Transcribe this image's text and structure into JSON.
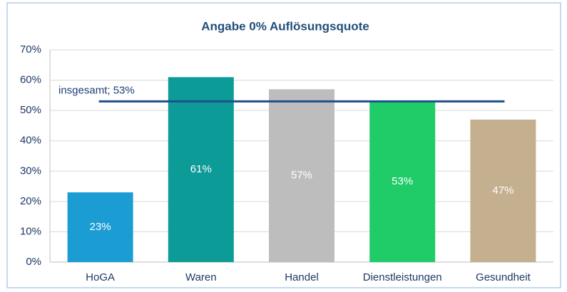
{
  "chart_data": {
    "type": "bar",
    "title": "Angabe 0% Auflösungsquote",
    "categories": [
      "HoGA",
      "Waren",
      "Handel",
      "Dienstleistungen",
      "Gesundheit"
    ],
    "values": [
      23,
      61,
      57,
      53,
      47
    ],
    "value_labels": [
      "23%",
      "61%",
      "57%",
      "53%",
      "47%"
    ],
    "colors": [
      "#1b9dd3",
      "#0d9b98",
      "#bdbdbd",
      "#20cc68",
      "#c4b08e"
    ],
    "ylim": [
      0,
      70
    ],
    "yticks": [
      {
        "value": 0,
        "label": "0%"
      },
      {
        "value": 10,
        "label": "10%"
      },
      {
        "value": 20,
        "label": "20%"
      },
      {
        "value": 30,
        "label": "30%"
      },
      {
        "value": 40,
        "label": "40%"
      },
      {
        "value": 50,
        "label": "50%"
      },
      {
        "value": 60,
        "label": "60%"
      },
      {
        "value": 70,
        "label": "70%"
      }
    ],
    "grid": true,
    "reference_line": {
      "value": 53,
      "label": "insgesamt; 53%",
      "color": "#1f4e8c"
    }
  }
}
